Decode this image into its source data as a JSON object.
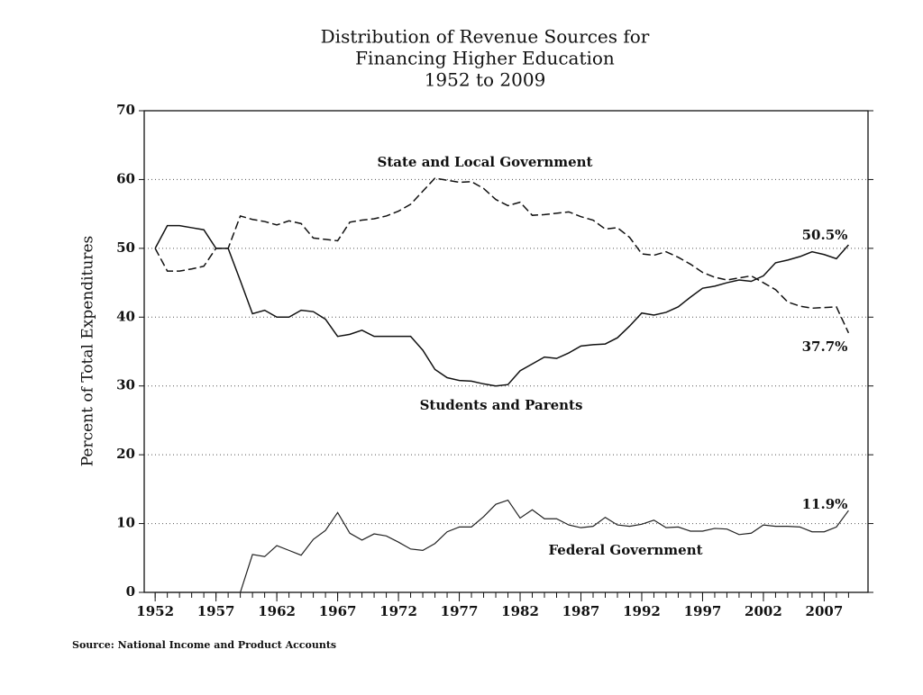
{
  "chart_data": {
    "type": "line",
    "title": [
      "Distribution of Revenue Sources for",
      "Financing Higher Education",
      "1952 to 2009"
    ],
    "y_label": "Percent of Total Expenditures",
    "source": "Source: National Income and Product Accounts",
    "x": [
      1952,
      1953,
      1954,
      1955,
      1956,
      1957,
      1958,
      1959,
      1960,
      1961,
      1962,
      1963,
      1964,
      1965,
      1966,
      1967,
      1968,
      1969,
      1970,
      1971,
      1972,
      1973,
      1974,
      1975,
      1976,
      1977,
      1978,
      1979,
      1980,
      1981,
      1982,
      1983,
      1984,
      1985,
      1986,
      1987,
      1988,
      1989,
      1990,
      1991,
      1992,
      1993,
      1994,
      1995,
      1996,
      1997,
      1998,
      1999,
      2000,
      2001,
      2002,
      2003,
      2004,
      2005,
      2006,
      2007,
      2008,
      2009
    ],
    "series": [
      {
        "name": "Students and Parents",
        "color": "#111111",
        "dash": "none",
        "values": [
          50,
          53.3,
          53.3,
          53,
          52.7,
          50,
          50,
          45.3,
          40.5,
          41,
          40,
          40,
          41,
          40.8,
          39.7,
          37.2,
          37.5,
          38.1,
          37.2,
          37.2,
          37.2,
          37.2,
          35.2,
          32.4,
          31.2,
          30.8,
          30.7,
          30.3,
          30,
          30.2,
          32.2,
          33.2,
          34.2,
          34,
          34.8,
          35.8,
          36,
          36.1,
          37,
          38.7,
          40.6,
          40.3,
          40.7,
          41.5,
          42.9,
          44.2,
          44.5,
          45,
          45.4,
          45.2,
          46,
          47.9,
          48.3,
          48.8,
          49.5,
          49.1,
          48.5,
          50.5
        ]
      },
      {
        "name": "State and Local Government",
        "color": "#111111",
        "dash": "9 4",
        "values": [
          50,
          46.7,
          46.7,
          47,
          47.4,
          50,
          50,
          54.7,
          54.2,
          53.9,
          53.4,
          54,
          53.6,
          51.5,
          51.3,
          51.1,
          53.8,
          54.1,
          54.3,
          54.7,
          55.4,
          56.4,
          58.3,
          60.2,
          59.9,
          59.6,
          59.7,
          58.7,
          57.1,
          56.2,
          56.7,
          54.8,
          54.9,
          55.1,
          55.3,
          54.6,
          54.1,
          52.8,
          53,
          51.6,
          49.2,
          49,
          49.5,
          48.7,
          47.7,
          46.5,
          45.8,
          45.4,
          45.7,
          46,
          45,
          44,
          42.2,
          41.6,
          41.3,
          41.4,
          41.5,
          37.7
        ]
      },
      {
        "name": "Federal Government",
        "color": "#222222",
        "dash": "none",
        "values": [
          0,
          0,
          0,
          0,
          0,
          0,
          0,
          0,
          5.5,
          5.2,
          6.8,
          6.1,
          5.4,
          7.7,
          9,
          11.6,
          8.6,
          7.6,
          8.5,
          8.2,
          7.3,
          6.3,
          6.1,
          7.1,
          8.8,
          9.5,
          9.5,
          11,
          12.8,
          13.4,
          10.8,
          12,
          10.7,
          10.7,
          9.8,
          9.4,
          9.6,
          10.9,
          9.8,
          9.6,
          9.9,
          10.5,
          9.4,
          9.5,
          8.9,
          8.9,
          9.3,
          9.2,
          8.4,
          8.6,
          9.8,
          9.6,
          9.6,
          9.5,
          8.8,
          8.8,
          9.5,
          11.9
        ]
      }
    ],
    "annotations": [
      "50.5%",
      "37.7%",
      "11.9%"
    ],
    "xlim": [
      1951.1,
      2010.6
    ],
    "xticks": [
      1952,
      1957,
      1962,
      1967,
      1972,
      1977,
      1982,
      1987,
      1992,
      1997,
      2002,
      2007
    ],
    "ylim": [
      0,
      70
    ],
    "yticks": [
      0,
      10,
      20,
      30,
      40,
      50,
      60,
      70
    ],
    "grid": true
  }
}
